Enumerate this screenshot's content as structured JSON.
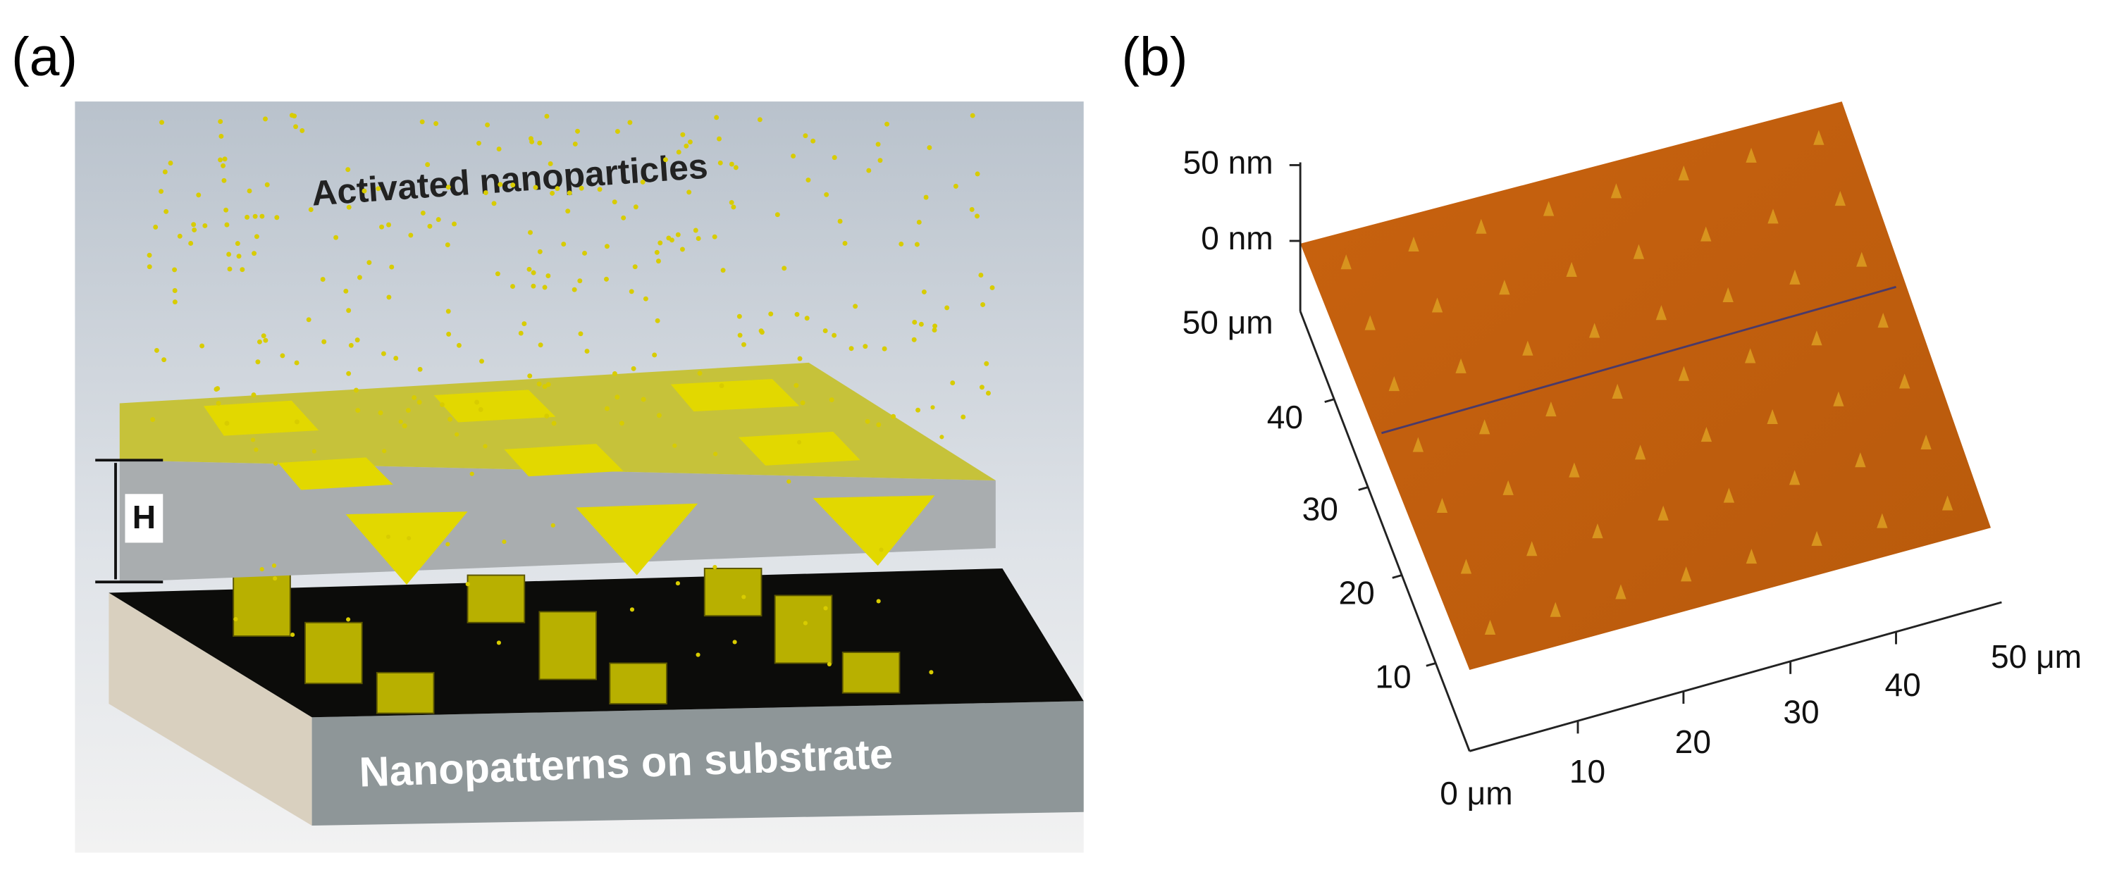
{
  "panel_a": {
    "label": "(a)",
    "top_text": "Activated nanoparticles",
    "gap_label": "H",
    "bottom_text": "Nanopatterns on substrate"
  },
  "panel_b": {
    "label": "(b)",
    "z_labels": [
      "50 nm",
      "0 nm"
    ],
    "y_labels": [
      "50 μm",
      "40",
      "30",
      "20",
      "10"
    ],
    "x_labels": [
      "0 μm",
      "10",
      "20",
      "30",
      "40",
      "50 μm"
    ]
  }
}
